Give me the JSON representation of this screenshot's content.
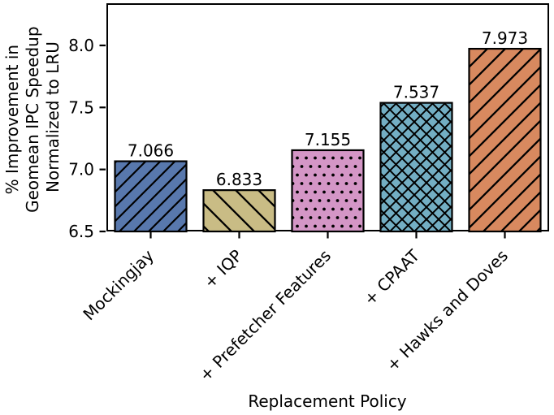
{
  "chart_data": {
    "type": "bar",
    "xlabel": "Replacement Policy",
    "ylabel": "% Improvement in Geomean IPC Speedup Normalized to LRU",
    "ylabel_lines": [
      "% Improvement in",
      "Geomean IPC Speedup",
      "Normalized to LRU"
    ],
    "categories": [
      "Mockingjay",
      "+ IQP",
      "+ Prefetcher Features",
      "+ CPAAT",
      "+ Hawks and Doves"
    ],
    "values": [
      7.066,
      6.833,
      7.155,
      7.537,
      7.973
    ],
    "value_labels": [
      "7.066",
      "6.833",
      "7.155",
      "7.537",
      "7.973"
    ],
    "yticks": [
      6.5,
      7.0,
      7.5,
      8.0
    ],
    "ytick_labels": [
      "6.5",
      "7.0",
      "7.5",
      "8.0"
    ],
    "ylim": [
      6.5,
      8.34
    ],
    "bar_colors": [
      "#5878ad",
      "#c9bc85",
      "#d496c6",
      "#73aec3",
      "#d8895f"
    ],
    "bar_hatches": [
      "/",
      "\\",
      ".",
      "x",
      "/"
    ],
    "edge_color": "#000000",
    "axis_color": "#000000",
    "background_color": "#ffffff",
    "grid": false,
    "legend": "none",
    "xtick_rotation_deg": 45
  }
}
